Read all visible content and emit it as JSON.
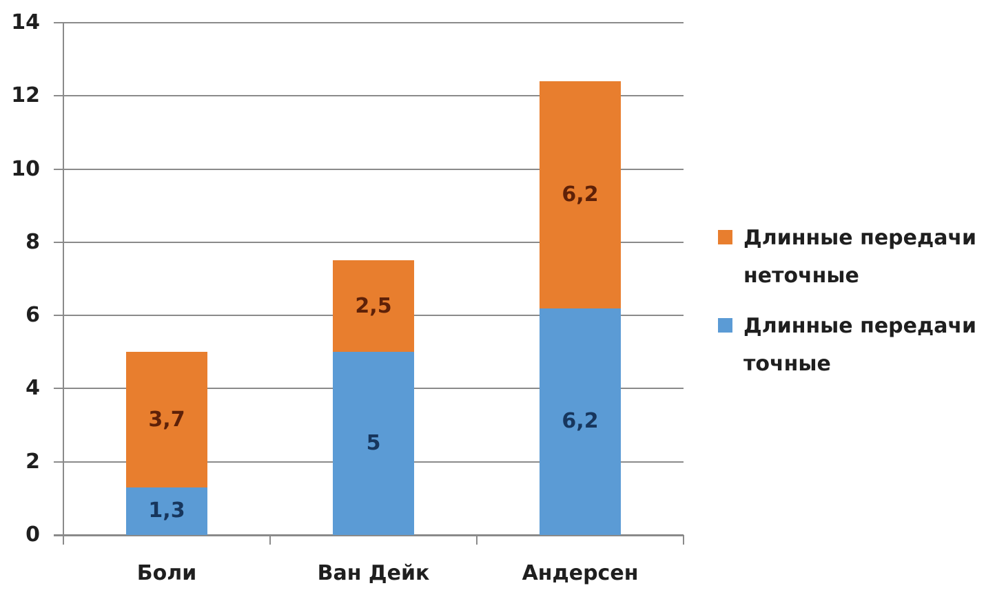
{
  "chart_data": {
    "type": "bar",
    "stacked": true,
    "title": "",
    "categories": [
      "Боли",
      "Ван Дейк",
      "Андерсен"
    ],
    "series": [
      {
        "name": "Длинные передачи точные",
        "color": "#5b9bd5",
        "label_color": "#17365d",
        "values": [
          1.3,
          5,
          6.2
        ],
        "labels": [
          "1,3",
          "5",
          "6,2"
        ]
      },
      {
        "name": "Длинные передачи неточные",
        "color": "#e87e2e",
        "label_color": "#5e2108",
        "values": [
          3.7,
          2.5,
          6.2
        ],
        "labels": [
          "3,7",
          "2,5",
          "6,2"
        ]
      }
    ],
    "y_axis": {
      "min": 0,
      "max": 14,
      "step": 2,
      "tick_labels": [
        "0",
        "2",
        "4",
        "6",
        "8",
        "10",
        "12",
        "14"
      ]
    },
    "x_axis": {
      "tick_labels": [
        "Боли",
        "Ван Дейк",
        "Андерсен"
      ]
    },
    "legend": {
      "position": "right",
      "items": [
        {
          "label": "Длинные передачи неточные",
          "color": "#e87e2e"
        },
        {
          "label": "Длинные передачи точные",
          "color": "#5b9bd5"
        }
      ]
    },
    "grid": true,
    "axis_color": "#8a8a8a",
    "text_color": "#1f1f1f",
    "background_color": "#ffffff"
  }
}
